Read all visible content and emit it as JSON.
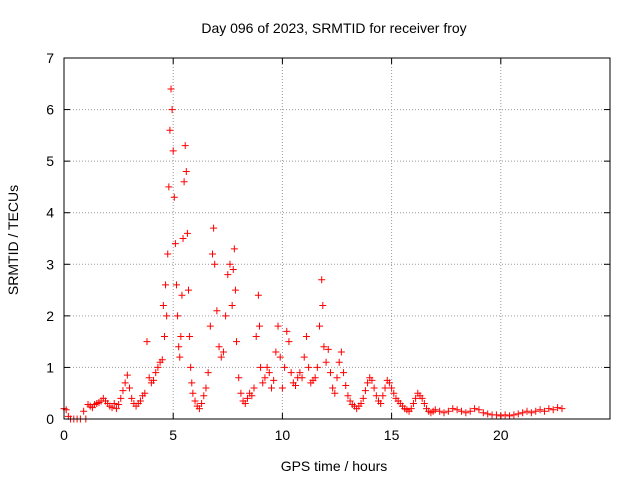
{
  "chart_data": {
    "type": "scatter",
    "title": "Day 096 of 2023, SRMTID for receiver froy",
    "xlabel": "GPS time / hours",
    "ylabel": "SRMTID / TECUs",
    "xlim": [
      0,
      25
    ],
    "ylim": [
      0,
      7
    ],
    "xticks": [
      0,
      5,
      10,
      15,
      20
    ],
    "yticks": [
      0,
      1,
      2,
      3,
      4,
      5,
      6,
      7
    ],
    "grid": true,
    "marker": "+",
    "color": "#ff0000",
    "series": [
      {
        "name": "SRMTID",
        "points": [
          [
            0.0,
            0.2
          ],
          [
            0.1,
            0.18
          ],
          [
            0.2,
            0.05
          ],
          [
            0.3,
            0.0
          ],
          [
            0.45,
            0.0
          ],
          [
            0.6,
            0.0
          ],
          [
            0.75,
            0.0
          ],
          [
            0.9,
            0.15
          ],
          [
            1.0,
            0.0
          ],
          [
            1.1,
            0.28
          ],
          [
            1.2,
            0.25
          ],
          [
            1.3,
            0.22
          ],
          [
            1.4,
            0.28
          ],
          [
            1.5,
            0.3
          ],
          [
            1.6,
            0.32
          ],
          [
            1.7,
            0.35
          ],
          [
            1.8,
            0.4
          ],
          [
            1.9,
            0.35
          ],
          [
            2.0,
            0.3
          ],
          [
            2.1,
            0.25
          ],
          [
            2.2,
            0.22
          ],
          [
            2.3,
            0.3
          ],
          [
            2.4,
            0.2
          ],
          [
            2.5,
            0.28
          ],
          [
            2.6,
            0.4
          ],
          [
            2.7,
            0.55
          ],
          [
            2.8,
            0.7
          ],
          [
            2.9,
            0.85
          ],
          [
            3.0,
            0.6
          ],
          [
            3.1,
            0.4
          ],
          [
            3.2,
            0.3
          ],
          [
            3.3,
            0.25
          ],
          [
            3.4,
            0.3
          ],
          [
            3.5,
            0.35
          ],
          [
            3.6,
            0.45
          ],
          [
            3.7,
            0.5
          ],
          [
            3.8,
            1.5
          ],
          [
            3.9,
            0.8
          ],
          [
            4.0,
            0.7
          ],
          [
            4.1,
            0.75
          ],
          [
            4.2,
            0.9
          ],
          [
            4.3,
            1.0
          ],
          [
            4.4,
            1.1
          ],
          [
            4.5,
            1.15
          ],
          [
            4.55,
            2.2
          ],
          [
            4.6,
            1.6
          ],
          [
            4.65,
            2.6
          ],
          [
            4.7,
            2.0
          ],
          [
            4.75,
            3.2
          ],
          [
            4.8,
            4.5
          ],
          [
            4.85,
            5.6
          ],
          [
            4.9,
            6.4
          ],
          [
            4.95,
            6.0
          ],
          [
            5.0,
            5.2
          ],
          [
            5.05,
            4.3
          ],
          [
            5.1,
            3.4
          ],
          [
            5.15,
            2.6
          ],
          [
            5.2,
            2.0
          ],
          [
            5.25,
            1.4
          ],
          [
            5.3,
            1.2
          ],
          [
            5.35,
            1.6
          ],
          [
            5.4,
            2.4
          ],
          [
            5.45,
            3.5
          ],
          [
            5.5,
            4.6
          ],
          [
            5.55,
            5.3
          ],
          [
            5.6,
            4.8
          ],
          [
            5.65,
            3.6
          ],
          [
            5.7,
            2.5
          ],
          [
            5.75,
            1.6
          ],
          [
            5.8,
            1.0
          ],
          [
            5.85,
            0.7
          ],
          [
            5.9,
            0.5
          ],
          [
            6.0,
            0.35
          ],
          [
            6.1,
            0.25
          ],
          [
            6.2,
            0.2
          ],
          [
            6.3,
            0.3
          ],
          [
            6.4,
            0.45
          ],
          [
            6.5,
            0.6
          ],
          [
            6.6,
            0.9
          ],
          [
            6.7,
            1.8
          ],
          [
            6.8,
            3.2
          ],
          [
            6.85,
            3.7
          ],
          [
            6.9,
            3.0
          ],
          [
            7.0,
            2.1
          ],
          [
            7.1,
            1.4
          ],
          [
            7.2,
            1.2
          ],
          [
            7.3,
            1.3
          ],
          [
            7.4,
            2.0
          ],
          [
            7.5,
            2.8
          ],
          [
            7.6,
            3.0
          ],
          [
            7.7,
            2.2
          ],
          [
            7.75,
            2.9
          ],
          [
            7.8,
            3.3
          ],
          [
            7.85,
            2.5
          ],
          [
            7.9,
            1.5
          ],
          [
            8.0,
            0.8
          ],
          [
            8.1,
            0.5
          ],
          [
            8.2,
            0.35
          ],
          [
            8.3,
            0.3
          ],
          [
            8.4,
            0.4
          ],
          [
            8.5,
            0.5
          ],
          [
            8.6,
            0.45
          ],
          [
            8.7,
            0.6
          ],
          [
            8.8,
            1.6
          ],
          [
            8.9,
            2.4
          ],
          [
            8.95,
            1.8
          ],
          [
            9.0,
            1.0
          ],
          [
            9.1,
            0.7
          ],
          [
            9.2,
            0.8
          ],
          [
            9.3,
            1.0
          ],
          [
            9.4,
            0.9
          ],
          [
            9.5,
            0.6
          ],
          [
            9.6,
            0.75
          ],
          [
            9.7,
            1.3
          ],
          [
            9.8,
            1.8
          ],
          [
            9.9,
            1.2
          ],
          [
            10.0,
            0.6
          ],
          [
            10.1,
            1.0
          ],
          [
            10.2,
            1.7
          ],
          [
            10.3,
            1.5
          ],
          [
            10.4,
            0.9
          ],
          [
            10.5,
            0.7
          ],
          [
            10.6,
            0.65
          ],
          [
            10.7,
            0.8
          ],
          [
            10.8,
            0.9
          ],
          [
            10.9,
            0.8
          ],
          [
            11.0,
            1.2
          ],
          [
            11.1,
            1.6
          ],
          [
            11.2,
            1.0
          ],
          [
            11.3,
            0.7
          ],
          [
            11.4,
            0.75
          ],
          [
            11.5,
            0.8
          ],
          [
            11.6,
            1.0
          ],
          [
            11.7,
            1.8
          ],
          [
            11.8,
            2.7
          ],
          [
            11.85,
            2.2
          ],
          [
            11.9,
            1.4
          ],
          [
            12.0,
            1.1
          ],
          [
            12.1,
            1.35
          ],
          [
            12.2,
            0.9
          ],
          [
            12.3,
            0.6
          ],
          [
            12.4,
            0.5
          ],
          [
            12.5,
            0.8
          ],
          [
            12.6,
            1.1
          ],
          [
            12.7,
            1.3
          ],
          [
            12.8,
            0.9
          ],
          [
            12.9,
            0.65
          ],
          [
            13.0,
            0.45
          ],
          [
            13.1,
            0.35
          ],
          [
            13.2,
            0.28
          ],
          [
            13.3,
            0.25
          ],
          [
            13.4,
            0.2
          ],
          [
            13.5,
            0.25
          ],
          [
            13.6,
            0.3
          ],
          [
            13.7,
            0.4
          ],
          [
            13.8,
            0.55
          ],
          [
            13.9,
            0.7
          ],
          [
            14.0,
            0.8
          ],
          [
            14.1,
            0.75
          ],
          [
            14.2,
            0.6
          ],
          [
            14.3,
            0.45
          ],
          [
            14.4,
            0.35
          ],
          [
            14.5,
            0.3
          ],
          [
            14.6,
            0.45
          ],
          [
            14.7,
            0.6
          ],
          [
            14.8,
            0.75
          ],
          [
            14.9,
            0.7
          ],
          [
            15.0,
            0.6
          ],
          [
            15.1,
            0.5
          ],
          [
            15.2,
            0.4
          ],
          [
            15.3,
            0.35
          ],
          [
            15.4,
            0.3
          ],
          [
            15.5,
            0.25
          ],
          [
            15.6,
            0.2
          ],
          [
            15.7,
            0.18
          ],
          [
            15.8,
            0.15
          ],
          [
            15.9,
            0.2
          ],
          [
            16.0,
            0.3
          ],
          [
            16.1,
            0.4
          ],
          [
            16.2,
            0.5
          ],
          [
            16.3,
            0.45
          ],
          [
            16.4,
            0.4
          ],
          [
            16.5,
            0.3
          ],
          [
            16.6,
            0.2
          ],
          [
            16.7,
            0.15
          ],
          [
            16.8,
            0.12
          ],
          [
            16.9,
            0.15
          ],
          [
            17.0,
            0.18
          ],
          [
            17.2,
            0.15
          ],
          [
            17.4,
            0.12
          ],
          [
            17.6,
            0.15
          ],
          [
            17.8,
            0.2
          ],
          [
            18.0,
            0.18
          ],
          [
            18.2,
            0.15
          ],
          [
            18.4,
            0.12
          ],
          [
            18.6,
            0.15
          ],
          [
            18.8,
            0.2
          ],
          [
            19.0,
            0.18
          ],
          [
            19.2,
            0.12
          ],
          [
            19.4,
            0.1
          ],
          [
            19.6,
            0.08
          ],
          [
            19.8,
            0.08
          ],
          [
            20.0,
            0.06
          ],
          [
            20.2,
            0.08
          ],
          [
            20.4,
            0.06
          ],
          [
            20.6,
            0.08
          ],
          [
            20.8,
            0.1
          ],
          [
            21.0,
            0.12
          ],
          [
            21.2,
            0.15
          ],
          [
            21.4,
            0.12
          ],
          [
            21.6,
            0.15
          ],
          [
            21.8,
            0.18
          ],
          [
            22.0,
            0.15
          ],
          [
            22.2,
            0.2
          ],
          [
            22.4,
            0.18
          ],
          [
            22.6,
            0.22
          ],
          [
            22.8,
            0.2
          ]
        ]
      }
    ]
  }
}
